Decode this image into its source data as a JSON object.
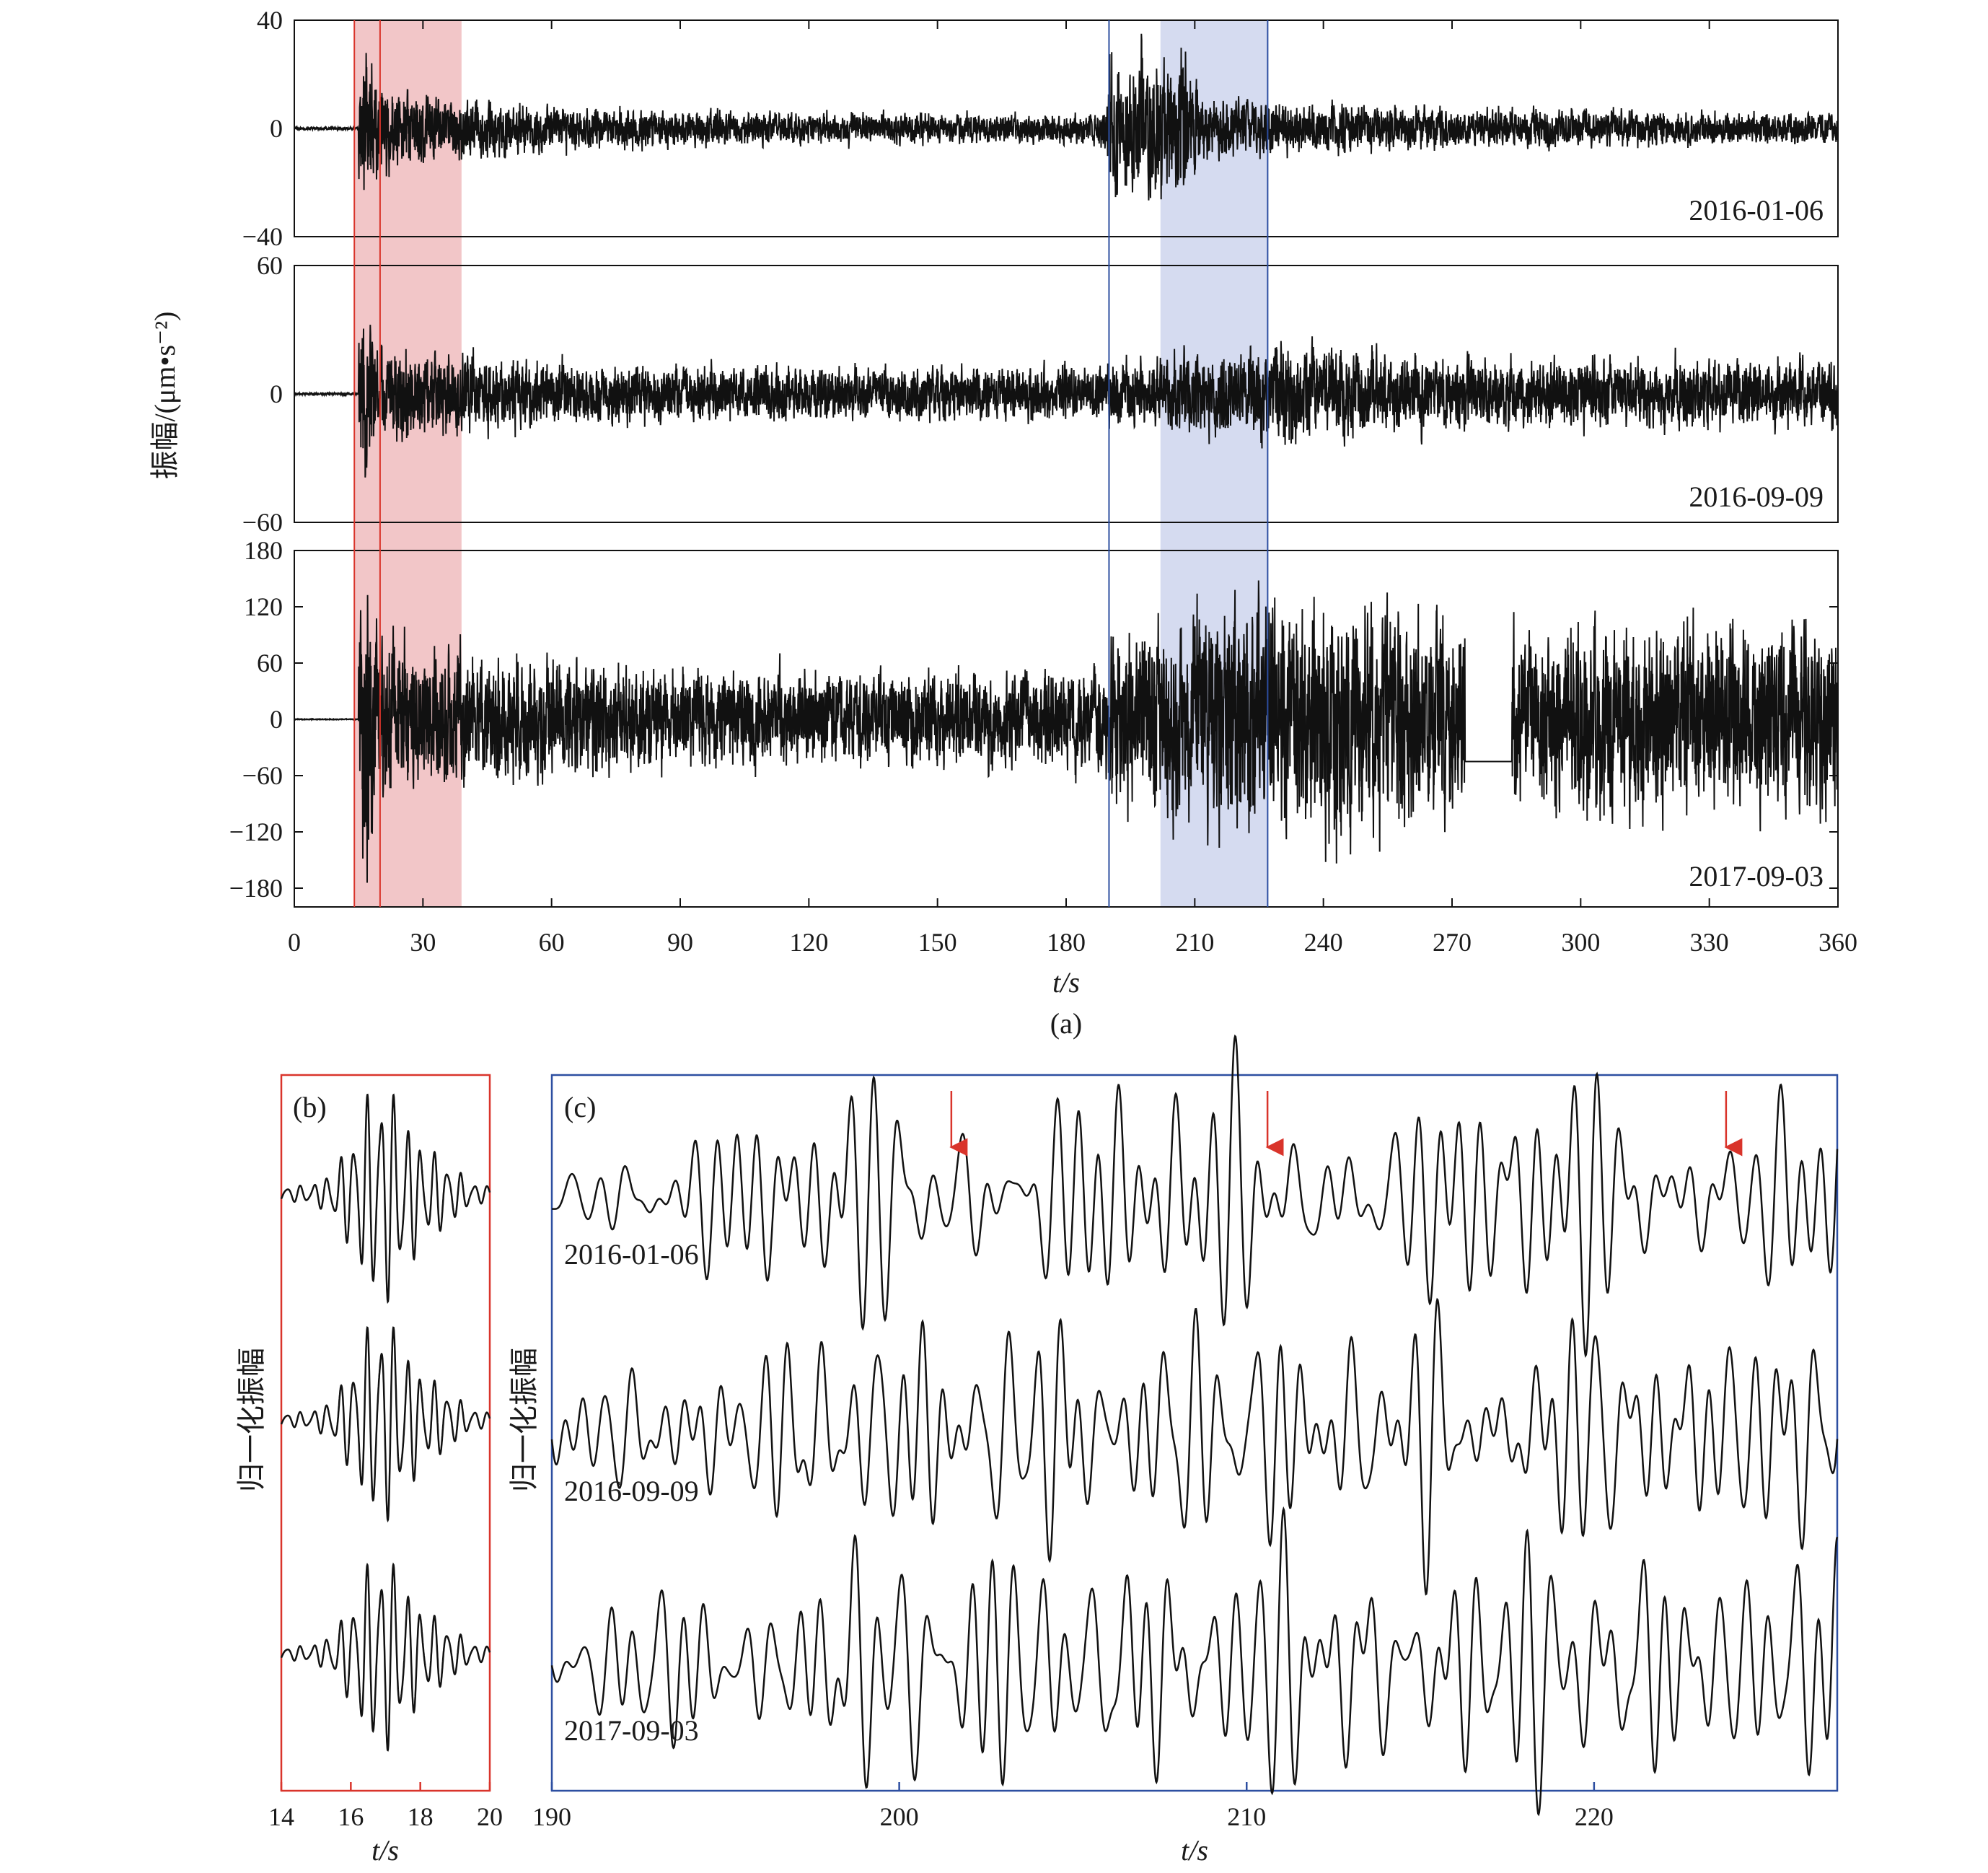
{
  "figure": {
    "panel_a_label": "(a)",
    "panel_b_label": "(b)",
    "panel_c_label": "(c)",
    "ylabel_a": "振幅/(μm•s⁻²)",
    "ylabel_bc": "归一化振幅",
    "xlabel": "t/s"
  },
  "colors": {
    "red_band": "#f2c6c8",
    "red_line": "#d9342b",
    "blue_band": "#d5dbf0",
    "blue_line": "#2d4fa1",
    "trace": "#111111"
  },
  "chart_data": [
    {
      "type": "line",
      "panel": "a",
      "xlim": [
        0,
        360
      ],
      "xticks": [
        0,
        30,
        60,
        90,
        120,
        150,
        180,
        210,
        240,
        270,
        300,
        330,
        360
      ],
      "shaded_regions": [
        {
          "x": [
            14,
            39
          ],
          "color": "red"
        },
        {
          "x": [
            202,
            227
          ],
          "color": "blue"
        }
      ],
      "vertical_lines": [
        {
          "x": 14,
          "color": "red"
        },
        {
          "x": 20,
          "color": "red"
        },
        {
          "x": 190,
          "color": "blue"
        },
        {
          "x": 227,
          "color": "blue"
        }
      ],
      "series": [
        {
          "name": "2016-01-06",
          "ylim": [
            -40,
            40
          ],
          "yticks": [
            -40,
            0,
            40
          ],
          "yticklabels": [
            "−40",
            "0",
            "40"
          ],
          "peak": 32
        },
        {
          "name": "2016-09-09",
          "ylim": [
            -60,
            60
          ],
          "yticks": [
            -60,
            0,
            60
          ],
          "yticklabels": [
            "−60",
            "0",
            "60"
          ],
          "peak": 45
        },
        {
          "name": "2017-09-03",
          "ylim": [
            -200,
            180
          ],
          "yticks": [
            -180,
            -120,
            -60,
            0,
            60,
            120,
            180
          ],
          "yticklabels": [
            "−180",
            "−120",
            "−60",
            "0",
            "60",
            "120",
            "180"
          ],
          "peak": 175
        }
      ]
    },
    {
      "type": "line",
      "panel": "b",
      "xlim": [
        14,
        20
      ],
      "xticks": [
        14,
        16,
        18,
        20
      ],
      "series": [
        {
          "name": "2016-01-06"
        },
        {
          "name": "2016-09-09"
        },
        {
          "name": "2017-09-03"
        }
      ]
    },
    {
      "type": "line",
      "panel": "c",
      "xlim": [
        190,
        227
      ],
      "xticks": [
        190,
        200,
        210,
        220
      ],
      "arrows_x": [
        201.5,
        210.6,
        223.8
      ],
      "series": [
        {
          "name": "2016-01-06"
        },
        {
          "name": "2016-09-09"
        },
        {
          "name": "2017-09-03"
        }
      ]
    }
  ]
}
